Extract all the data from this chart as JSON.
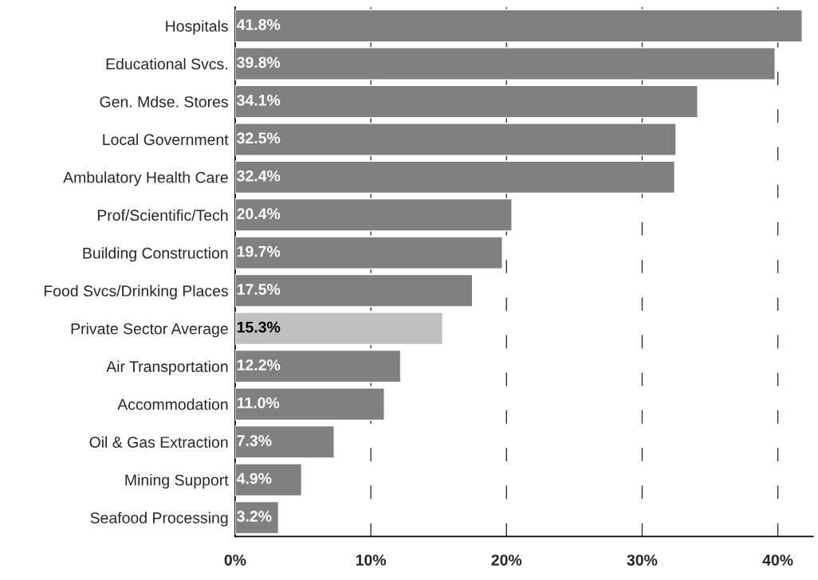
{
  "chart_data": {
    "type": "bar",
    "orientation": "horizontal",
    "categories": [
      "Hospitals",
      "Educational Svcs.",
      "Gen. Mdse. Stores",
      "Local Government",
      "Ambulatory Health Care",
      "Prof/Scientific/Tech",
      "Building Construction",
      "Food Svcs/Drinking Places",
      "Private Sector Average",
      "Air Transportation",
      "Accommodation",
      "Oil & Gas Extraction",
      "Mining Support",
      "Seafood Processing"
    ],
    "values": [
      41.8,
      39.8,
      34.1,
      32.5,
      32.4,
      20.4,
      19.7,
      17.5,
      15.3,
      12.2,
      11.0,
      7.3,
      4.9,
      3.2
    ],
    "value_labels": [
      "41.8%",
      "39.8%",
      "34.1%",
      "32.5%",
      "32.4%",
      "20.4%",
      "19.7%",
      "17.5%",
      "15.3%",
      "12.2%",
      "11.0%",
      "7.3%",
      "4.9%",
      "3.2%"
    ],
    "colors": [
      "#808080",
      "#808080",
      "#808080",
      "#808080",
      "#808080",
      "#808080",
      "#808080",
      "#808080",
      "#c0c0c0",
      "#808080",
      "#808080",
      "#808080",
      "#808080",
      "#808080"
    ],
    "xlim": [
      0,
      42.6
    ],
    "xticks": [
      {
        "value": 0,
        "label": "0%"
      },
      {
        "value": 10,
        "label": "10%"
      },
      {
        "value": 20,
        "label": "20%"
      },
      {
        "value": 30,
        "label": "30%"
      },
      {
        "value": 40,
        "label": "40%"
      }
    ],
    "grid": "x",
    "legend": false
  }
}
